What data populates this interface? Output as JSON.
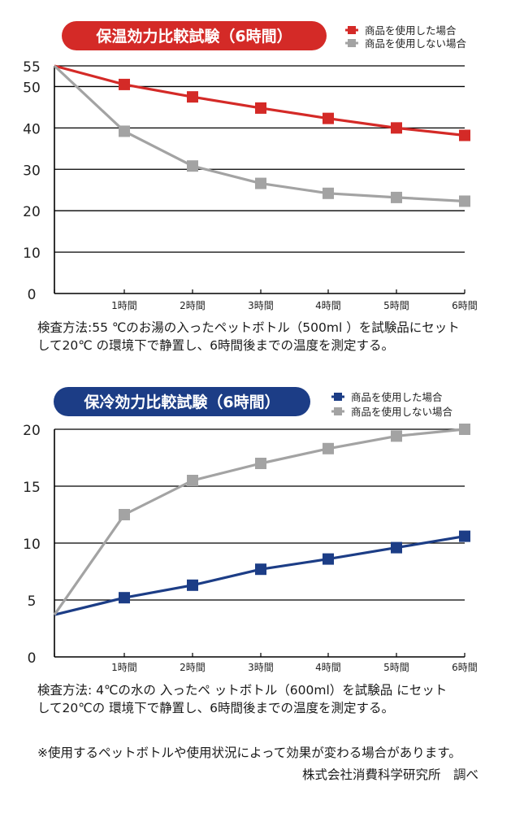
{
  "chart_data": [
    {
      "type": "line",
      "title": "保温効力比較試験（6時間）",
      "title_color": "#d42a27",
      "categories": [
        "",
        "1時間",
        "2時間",
        "3時間",
        "4時間",
        "5時間",
        "6時間"
      ],
      "yticks": [
        0,
        10,
        20,
        30,
        40,
        50,
        55
      ],
      "ylim": [
        0,
        55
      ],
      "grid": true,
      "legend_position": "top-right",
      "series": [
        {
          "name": "商品を使用した場合",
          "color": "#d42a27",
          "values": [
            55,
            50.5,
            47.5,
            44.8,
            42.3,
            40,
            38.2
          ]
        },
        {
          "name": "商品を使用しない場合",
          "color": "#a3a3a3",
          "values": [
            55,
            39.2,
            30.8,
            26.6,
            24.2,
            23.2,
            22.3
          ]
        }
      ],
      "note_lines": [
        "検査方法:55 ℃のお湯の入ったペットボトル（500ml ）を試験品にセット",
        "して20℃ の環境下で静置し、6時間後までの温度を測定する。"
      ]
    },
    {
      "type": "line",
      "title": "保冷効力比較試験（6時間）",
      "title_color": "#1c3d86",
      "categories": [
        "",
        "1時間",
        "2時間",
        "3時間",
        "4時間",
        "5時間",
        "6時間"
      ],
      "yticks": [
        0,
        5,
        10,
        15,
        20
      ],
      "ylim": [
        0,
        20
      ],
      "grid": true,
      "legend_position": "top-right",
      "series": [
        {
          "name": "商品を使用した場合",
          "color": "#1c3d86",
          "values": [
            3.7,
            5.2,
            6.3,
            7.7,
            8.6,
            9.6,
            10.6
          ]
        },
        {
          "name": "商品を使用しない場合",
          "color": "#a3a3a3",
          "values": [
            3.7,
            12.5,
            15.5,
            17.0,
            18.3,
            19.4,
            20
          ]
        }
      ],
      "note_lines": [
        "検査方法: 4℃の水の 入ったペ ットボトル（600ml）を試験品 にセット",
        "して20℃の 環境下で静置し、6時間後までの温度を測定する。"
      ]
    }
  ],
  "footer": {
    "disclaimer": "※使用するペットボトルや使用状況によって効果が変わる場合があります。",
    "source": "株式会社消費科学研究所　調べ"
  }
}
